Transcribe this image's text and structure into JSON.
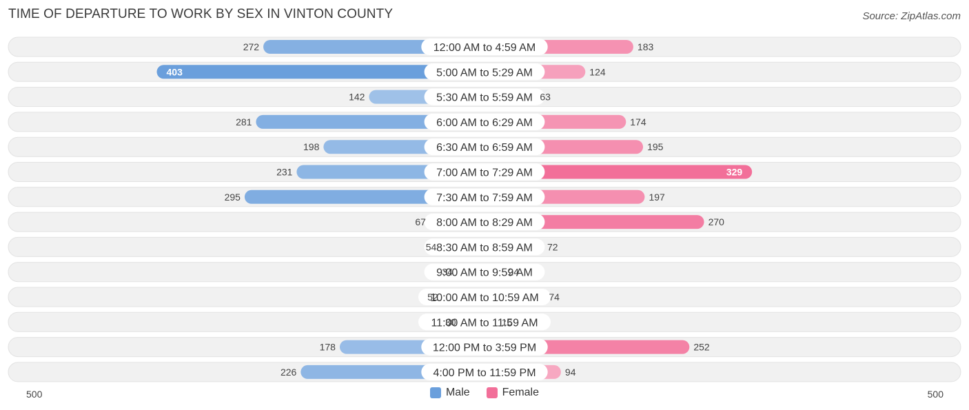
{
  "title": "TIME OF DEPARTURE TO WORK BY SEX IN VINTON COUNTY",
  "source": "Source: ZipAtlas.com",
  "colors": {
    "male": "#6a9fdc",
    "female": "#f26f99",
    "row_bg": "#f1f1f1"
  },
  "legend": {
    "male_label": "Male",
    "female_label": "Female"
  },
  "chart_data": {
    "type": "bar",
    "orientation": "horizontal-diverging",
    "title": "TIME OF DEPARTURE TO WORK BY SEX IN VINTON COUNTY",
    "categories": [
      "12:00 AM to 4:59 AM",
      "5:00 AM to 5:29 AM",
      "5:30 AM to 5:59 AM",
      "6:00 AM to 6:29 AM",
      "6:30 AM to 6:59 AM",
      "7:00 AM to 7:29 AM",
      "7:30 AM to 7:59 AM",
      "8:00 AM to 8:29 AM",
      "8:30 AM to 8:59 AM",
      "9:00 AM to 9:59 AM",
      "10:00 AM to 10:59 AM",
      "11:00 AM to 11:59 AM",
      "12:00 PM to 3:59 PM",
      "4:00 PM to 11:59 PM"
    ],
    "series": [
      {
        "name": "Male",
        "values": [
          272,
          403,
          142,
          281,
          198,
          231,
          295,
          67,
          54,
          34,
          52,
          30,
          178,
          226
        ]
      },
      {
        "name": "Female",
        "values": [
          183,
          124,
          63,
          174,
          195,
          329,
          197,
          270,
          72,
          24,
          74,
          16,
          252,
          94
        ]
      }
    ],
    "axis_min_label": "500",
    "axis_max_label": "500",
    "xlim": [
      -500,
      500
    ],
    "legend_position": "bottom-center"
  }
}
